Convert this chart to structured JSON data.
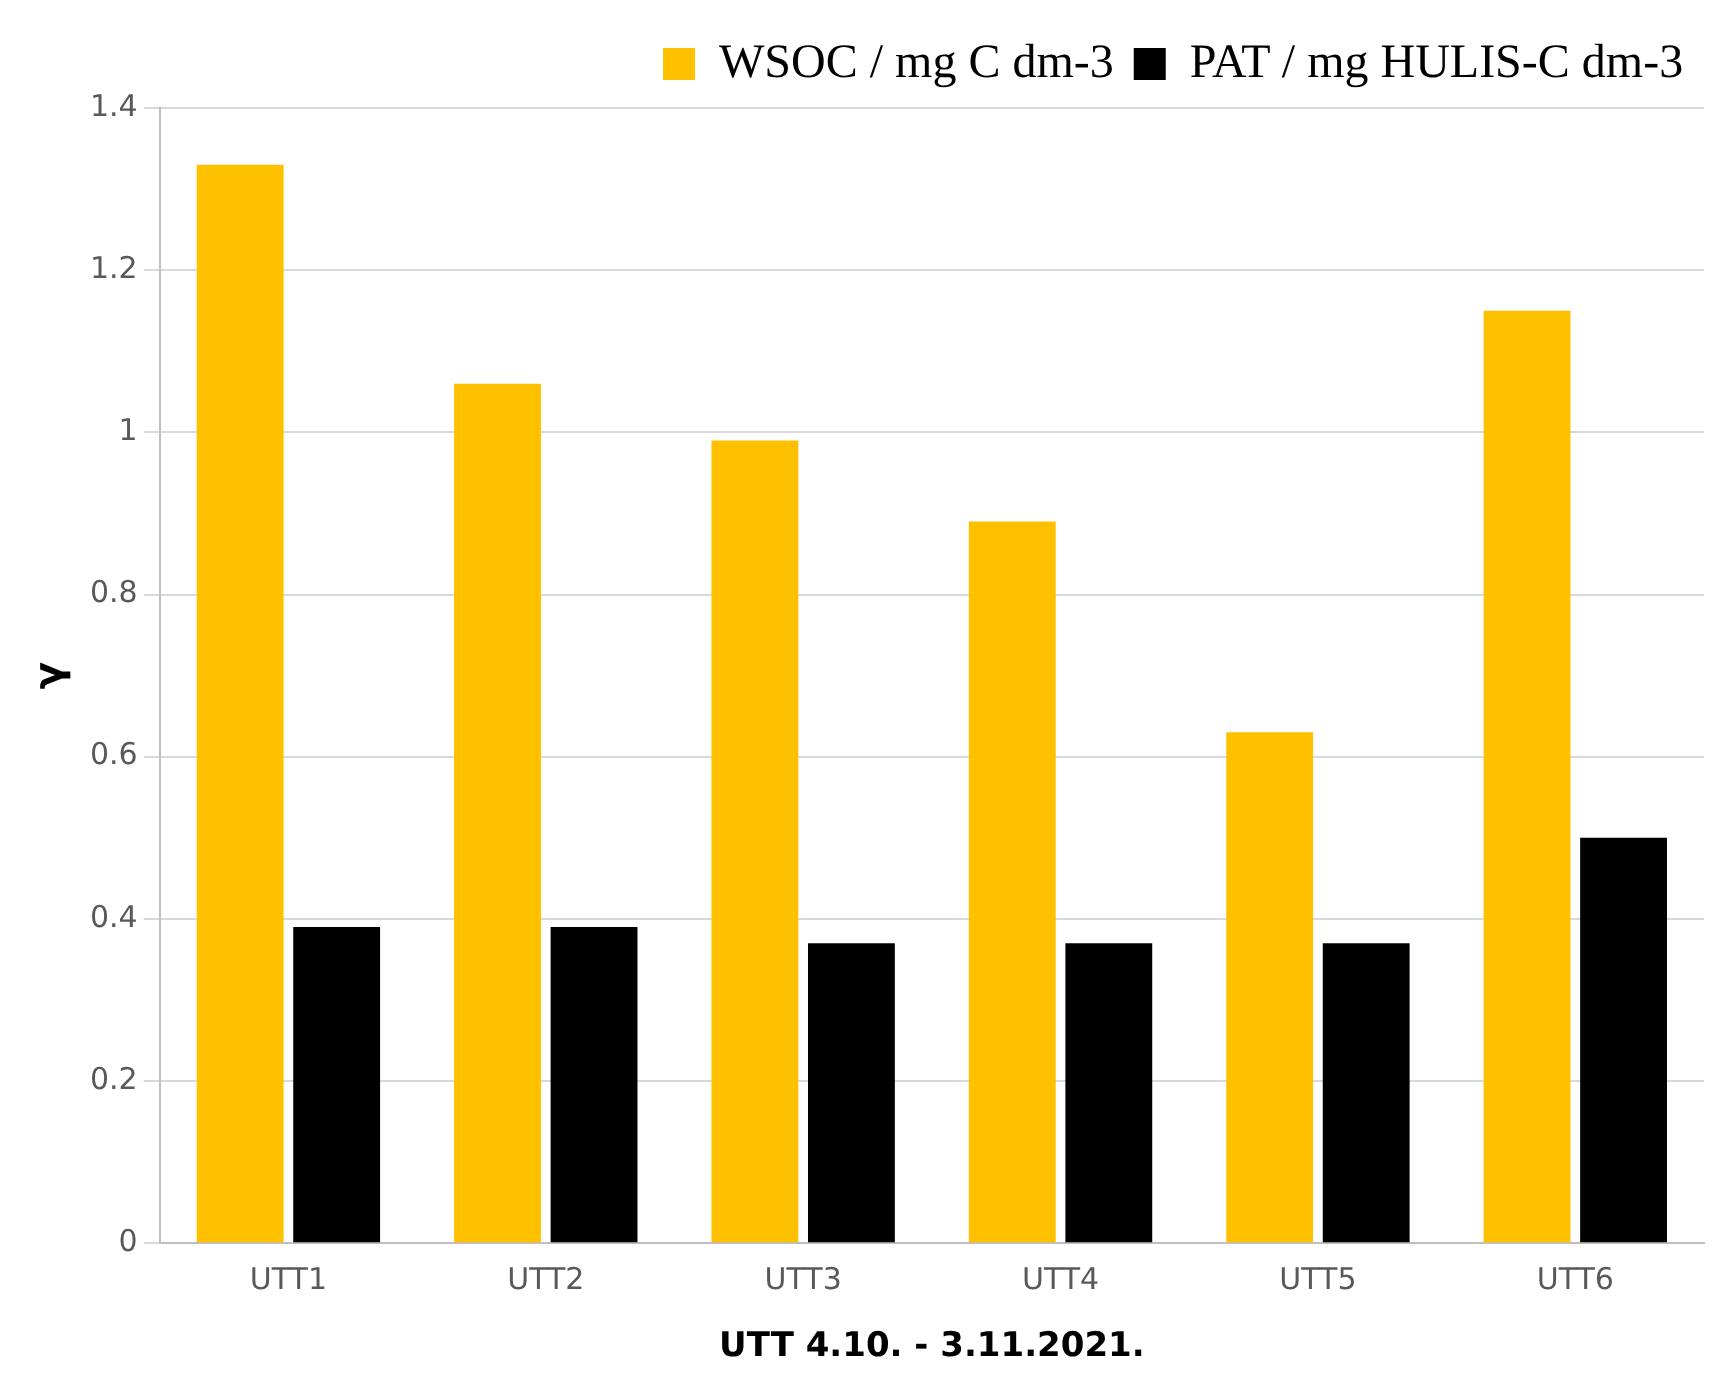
{
  "chart_data": {
    "type": "bar",
    "xlabel": "UTT 4.10. - 3.11.2021.",
    "ylabel": "γ",
    "categories": [
      "UTT1",
      "UTT2",
      "UTT3",
      "UTT4",
      "UTT5",
      "UTT6"
    ],
    "series": [
      {
        "name": "WSOC / mg C dm-3",
        "color": "#ffc000",
        "values": [
          1.33,
          1.06,
          0.99,
          0.89,
          0.63,
          1.15
        ]
      },
      {
        "name": "PAT / mg HULIS-C dm-3",
        "color": "#000000",
        "values": [
          0.39,
          0.39,
          0.37,
          0.37,
          0.37,
          0.5
        ]
      }
    ],
    "ylim": [
      0,
      1.4
    ],
    "yticks": [
      0,
      0.2,
      0.4,
      0.6,
      0.8,
      1,
      1.2,
      1.4
    ],
    "grid": "y",
    "legend": "top right"
  }
}
